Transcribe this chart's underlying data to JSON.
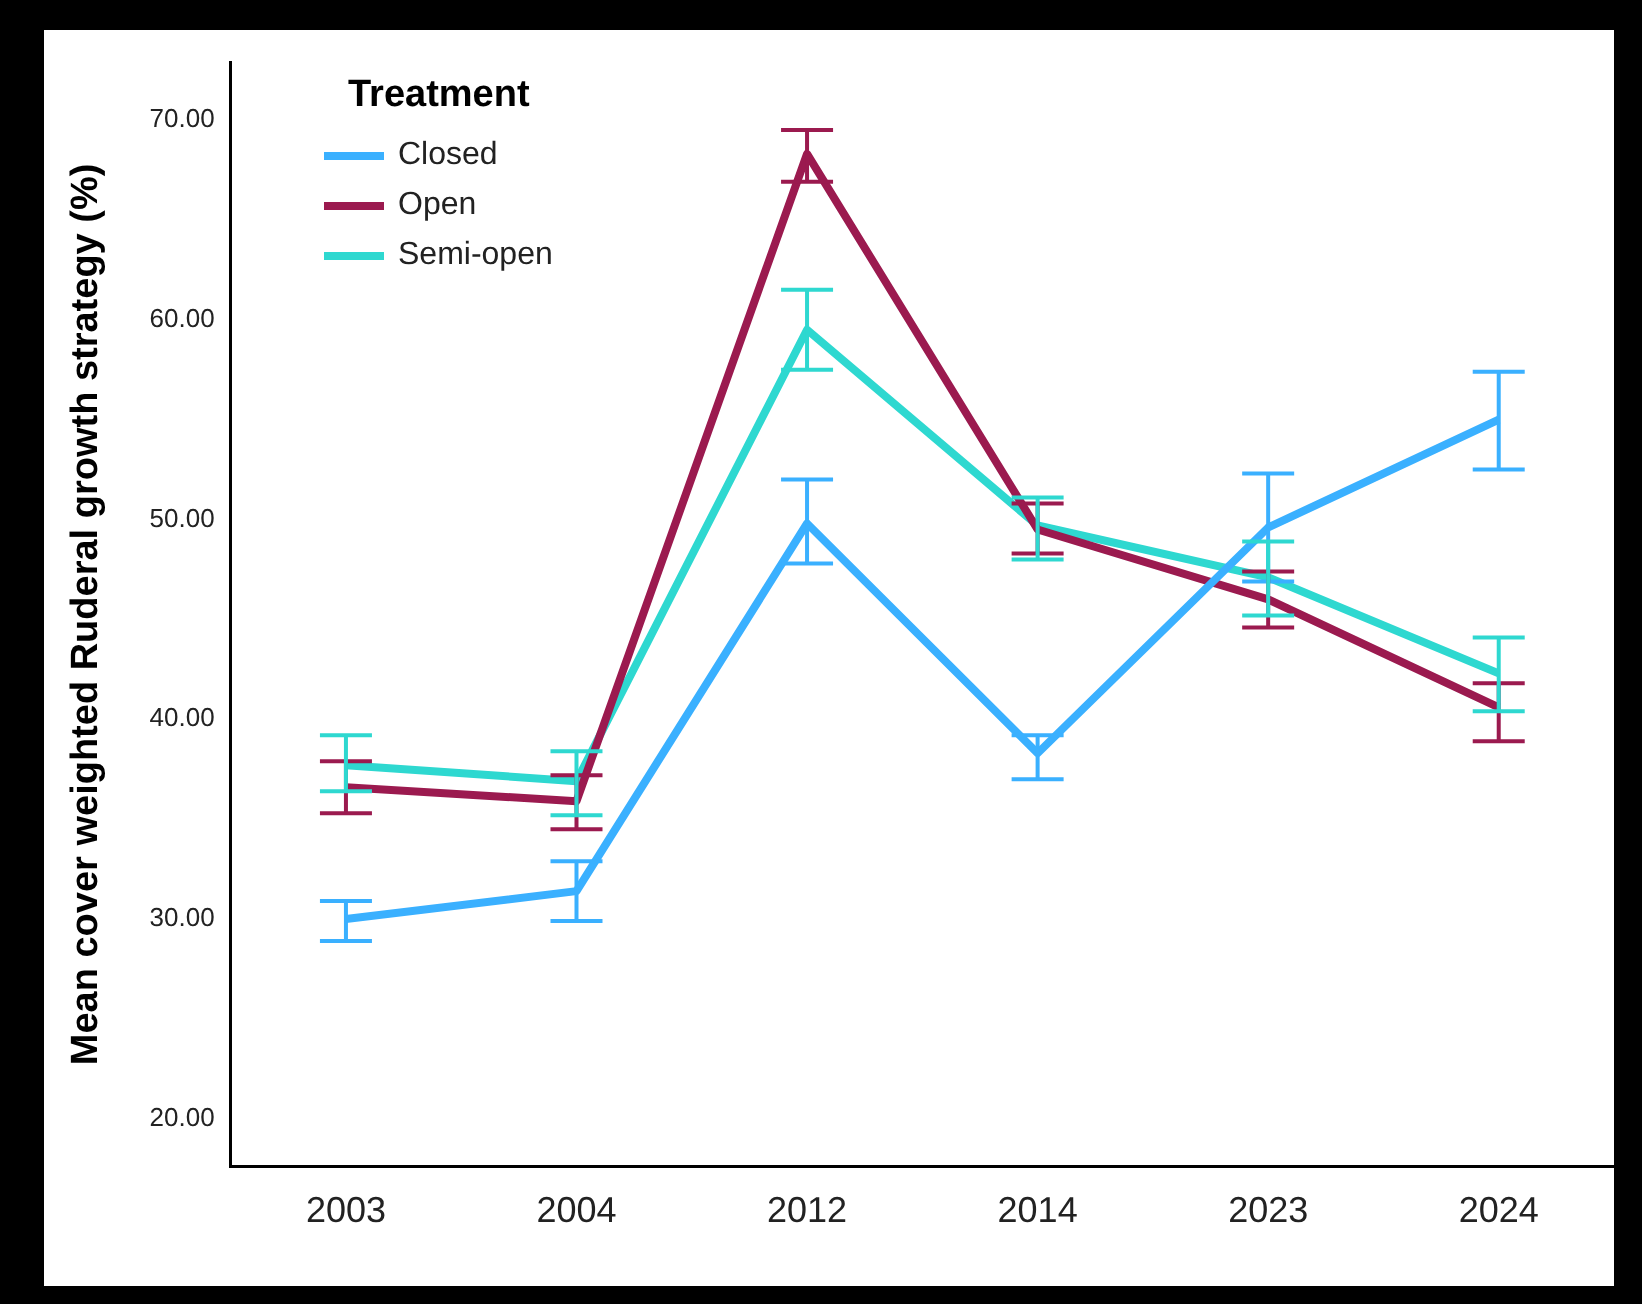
{
  "chart_data": {
    "type": "line",
    "ylabel": "Mean cover weighted Ruderal growth strategy (%)",
    "legend_title": "Treatment",
    "categories": [
      "2003",
      "2004",
      "2012",
      "2014",
      "2023",
      "2024"
    ],
    "series": [
      {
        "name": "Closed",
        "color": "#3ab0ff",
        "values": [
          30.0,
          31.4,
          49.8,
          38.3,
          49.6,
          55.0
        ],
        "errors": [
          [
            28.9,
            30.9
          ],
          [
            29.9,
            32.9
          ],
          [
            47.8,
            52.0
          ],
          [
            37.0,
            39.2
          ],
          [
            46.9,
            52.3
          ],
          [
            52.5,
            57.4
          ]
        ]
      },
      {
        "name": "Open",
        "color": "#9b1a4f",
        "values": [
          36.6,
          35.9,
          68.3,
          49.5,
          46.0,
          40.6
        ],
        "errors": [
          [
            35.3,
            37.9
          ],
          [
            34.5,
            37.2
          ],
          [
            66.9,
            69.5
          ],
          [
            48.3,
            50.8
          ],
          [
            44.6,
            47.4
          ],
          [
            38.9,
            41.8
          ]
        ]
      },
      {
        "name": "Semi-open",
        "color": "#2ed8d0",
        "values": [
          37.7,
          36.9,
          59.5,
          49.7,
          47.1,
          42.3
        ],
        "errors": [
          [
            36.4,
            39.2
          ],
          [
            35.2,
            38.4
          ],
          [
            57.5,
            61.5
          ],
          [
            48.0,
            51.1
          ],
          [
            45.2,
            48.9
          ],
          [
            40.4,
            44.1
          ]
        ]
      }
    ],
    "ylim": [
      17.6,
      72.9
    ],
    "yticks": [
      {
        "value": 20,
        "label": "20.00"
      },
      {
        "value": 30,
        "label": "30.00"
      },
      {
        "value": 40,
        "label": "40.00"
      },
      {
        "value": 50,
        "label": "50.00"
      },
      {
        "value": 60,
        "label": "60.00"
      },
      {
        "value": 70,
        "label": "70.00"
      }
    ],
    "grid": false,
    "legend": "top left",
    "marker": "none",
    "line_style": "solid"
  }
}
